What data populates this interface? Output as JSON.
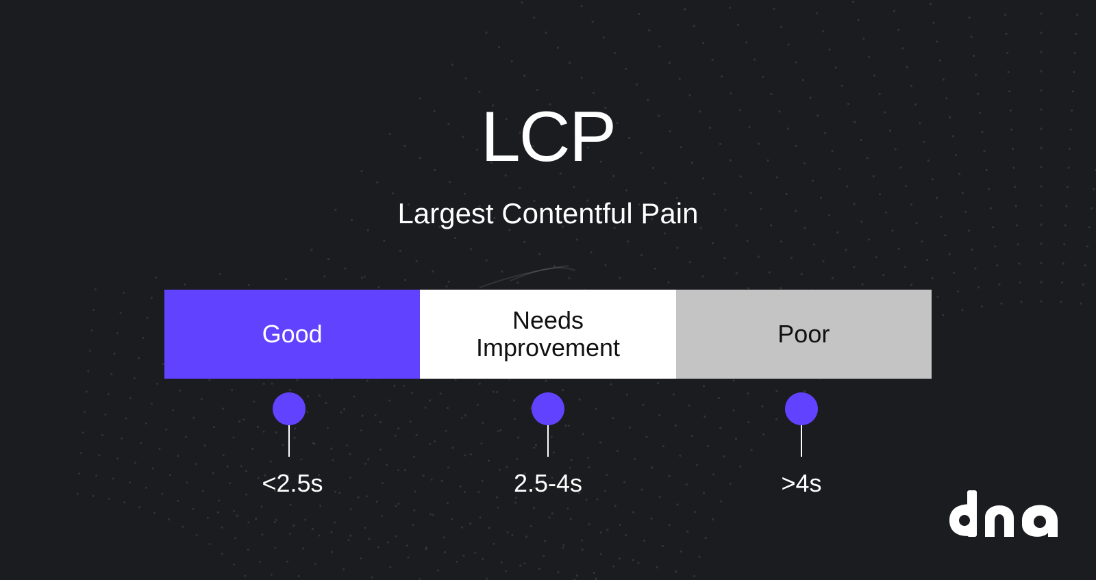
{
  "title": "LCP",
  "subtitle": "Largest Contentful Pain",
  "scale": {
    "segments": [
      {
        "label": "Good",
        "color": "#6142ff"
      },
      {
        "label": "Needs Improvement",
        "color": "#ffffff"
      },
      {
        "label": "Poor",
        "color": "#c4c4c4"
      }
    ],
    "thresholds": [
      "<2.5s",
      "2.5-4s",
      ">4s"
    ]
  },
  "logo": {
    "name": "dna-logo",
    "text": "dna"
  },
  "colors": {
    "background": "#1b1c1f",
    "accent": "#6142ff"
  }
}
